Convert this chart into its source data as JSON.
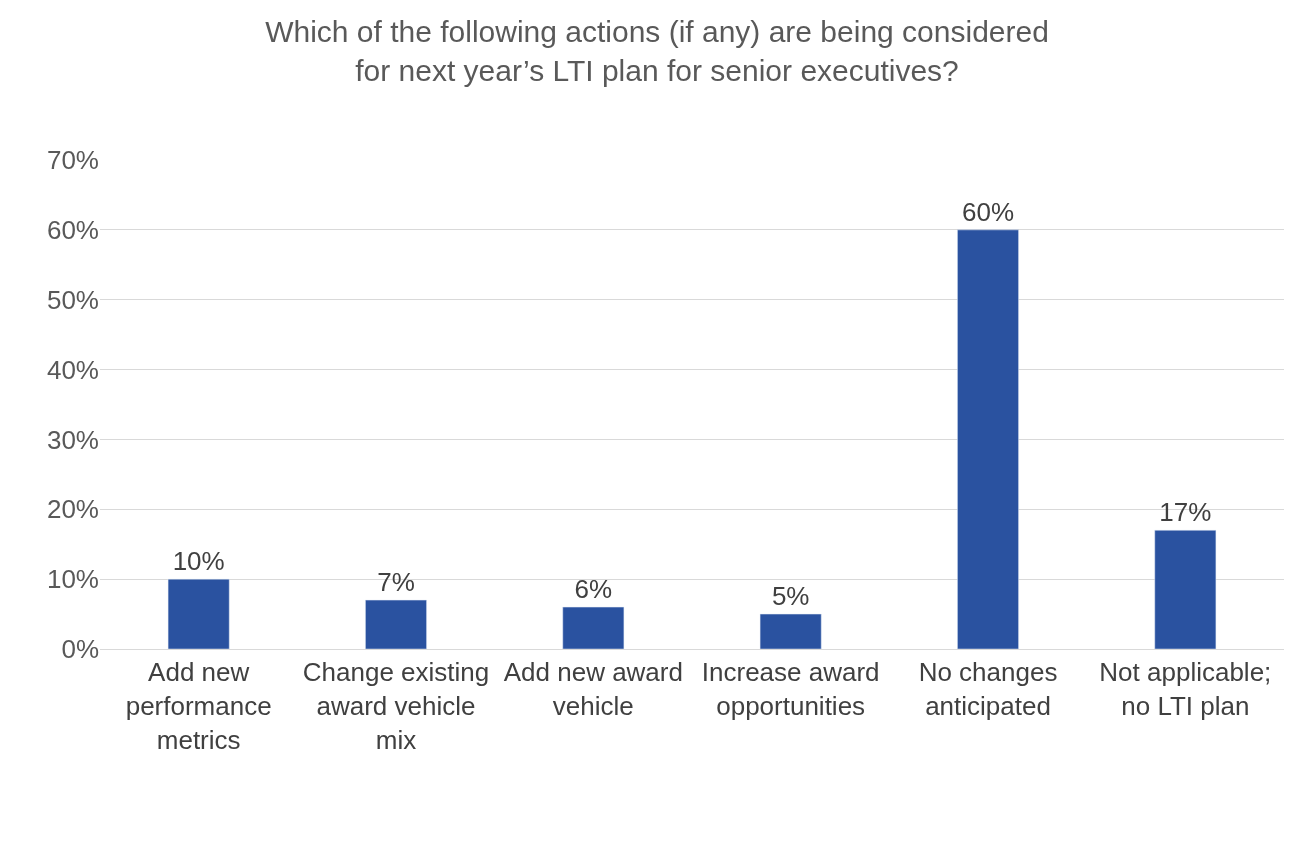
{
  "chart_data": {
    "type": "bar",
    "title": "Which of the following actions (if any) are being considered for next year’s LTI plan for senior executives?",
    "categories": [
      "Add new performance metrics",
      "Change existing award vehicle mix",
      "Add new award vehicle",
      "Increase award opportunities",
      "No changes anticipated",
      "Not applicable; no LTI plan"
    ],
    "values": [
      10,
      7,
      6,
      5,
      60,
      17
    ],
    "color": "#2a52a0",
    "ylim": [
      0,
      70
    ],
    "yticks": [
      {
        "value": 0,
        "label": "0%"
      },
      {
        "value": 10,
        "label": "10%"
      },
      {
        "value": 20,
        "label": "20%"
      },
      {
        "value": 30,
        "label": "30%"
      },
      {
        "value": 40,
        "label": "40%"
      },
      {
        "value": 50,
        "label": "50%"
      },
      {
        "value": 60,
        "label": "60%"
      },
      {
        "value": 70,
        "label": "70%"
      }
    ],
    "grid": "y",
    "value_labels": [
      "10%",
      "7%",
      "6%",
      "5%",
      "60%",
      "17%"
    ]
  }
}
